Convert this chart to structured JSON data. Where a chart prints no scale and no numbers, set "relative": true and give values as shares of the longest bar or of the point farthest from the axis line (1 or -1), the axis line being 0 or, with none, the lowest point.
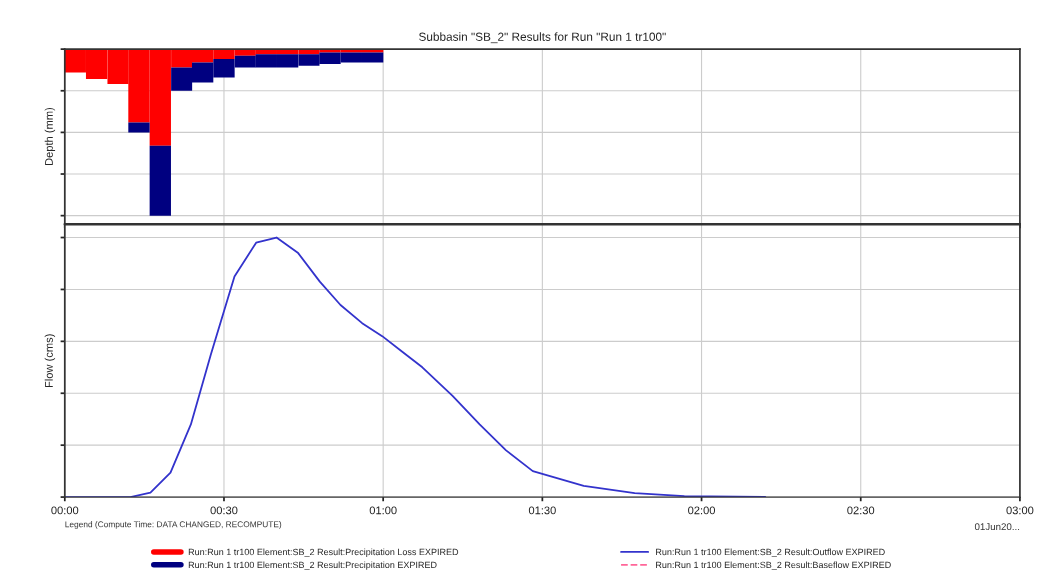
{
  "chart_data": [
    {
      "type": "bar",
      "title": "Subbasin \"SB_2\" Results for Run \"Run 1 tr100\"",
      "ylabel": "Depth (mm)",
      "relative": true,
      "stacked": true,
      "grid": true,
      "tick_labels": false,
      "legend": "bottom",
      "xlim": [
        0,
        3
      ],
      "x": [
        0.033,
        0.1,
        0.167,
        0.233,
        0.3,
        0.367,
        0.433,
        0.5,
        0.567,
        0.633,
        0.7,
        0.767,
        0.833,
        0.9,
        0.967
      ],
      "series": [
        {
          "name": "Run:Run 1 tr100 Element:SB_2 Result:Precipitation Loss EXPIRED",
          "color": "#ff0000",
          "values": [
            -0.14,
            -0.18,
            -0.21,
            -0.44,
            -0.58,
            -0.11,
            -0.08,
            -0.06,
            -0.04,
            -0.03,
            -0.03,
            -0.03,
            -0.02,
            -0.02,
            -0.02
          ]
        },
        {
          "name": "Run:Run 1 tr100 Element:SB_2 Result:Precipitation EXPIRED",
          "color": "#000080",
          "values": [
            0,
            0,
            0,
            -0.06,
            -0.42,
            -0.14,
            -0.12,
            -0.11,
            -0.07,
            -0.08,
            -0.08,
            -0.07,
            -0.07,
            -0.06,
            -0.06
          ]
        }
      ]
    },
    {
      "type": "line",
      "ylabel": "Flow (cms)",
      "relative": true,
      "grid": true,
      "tick_labels": "x",
      "legend": "bottom",
      "xlim": [
        0,
        3
      ],
      "xticks": [
        {
          "value": 0,
          "label": "00:00"
        },
        {
          "value": 0.5,
          "label": "00:30"
        },
        {
          "value": 1,
          "label": "01:00"
        },
        {
          "value": 1.5,
          "label": "01:30"
        },
        {
          "value": 2,
          "label": "02:00"
        },
        {
          "value": 2.5,
          "label": "02:30"
        },
        {
          "value": 3,
          "label": "03:00"
        }
      ],
      "annotations": [
        "01Jun20...",
        "Legend (Compute Time: DATA CHANGED, RECOMPUTE)"
      ],
      "series": [
        {
          "name": "Run:Run 1 tr100 Element:SB_2 Result:Outflow EXPIRED",
          "color": "#3333cc",
          "line_style": "solid",
          "x": [
            0,
            0.206,
            0.269,
            0.332,
            0.396,
            0.459,
            0.533,
            0.601,
            0.665,
            0.733,
            0.801,
            0.866,
            0.934,
            0.997,
            1.06,
            1.123,
            1.218,
            1.303,
            1.386,
            1.47,
            1.63,
            1.79,
            1.946,
            2.2
          ],
          "values": [
            0,
            0,
            0.017,
            0.094,
            0.28,
            0.55,
            0.85,
            0.98,
            1,
            0.94,
            0.83,
            0.74,
            0.67,
            0.62,
            0.56,
            0.5,
            0.39,
            0.28,
            0.18,
            0.1,
            0.043,
            0.015,
            0.004,
            0.001
          ]
        },
        {
          "name": "Run:Run 1 tr100 Element:SB_2 Result:Baseflow EXPIRED",
          "color": "#ff6699",
          "line_style": "dashed",
          "values": [
            null
          ]
        }
      ]
    }
  ]
}
